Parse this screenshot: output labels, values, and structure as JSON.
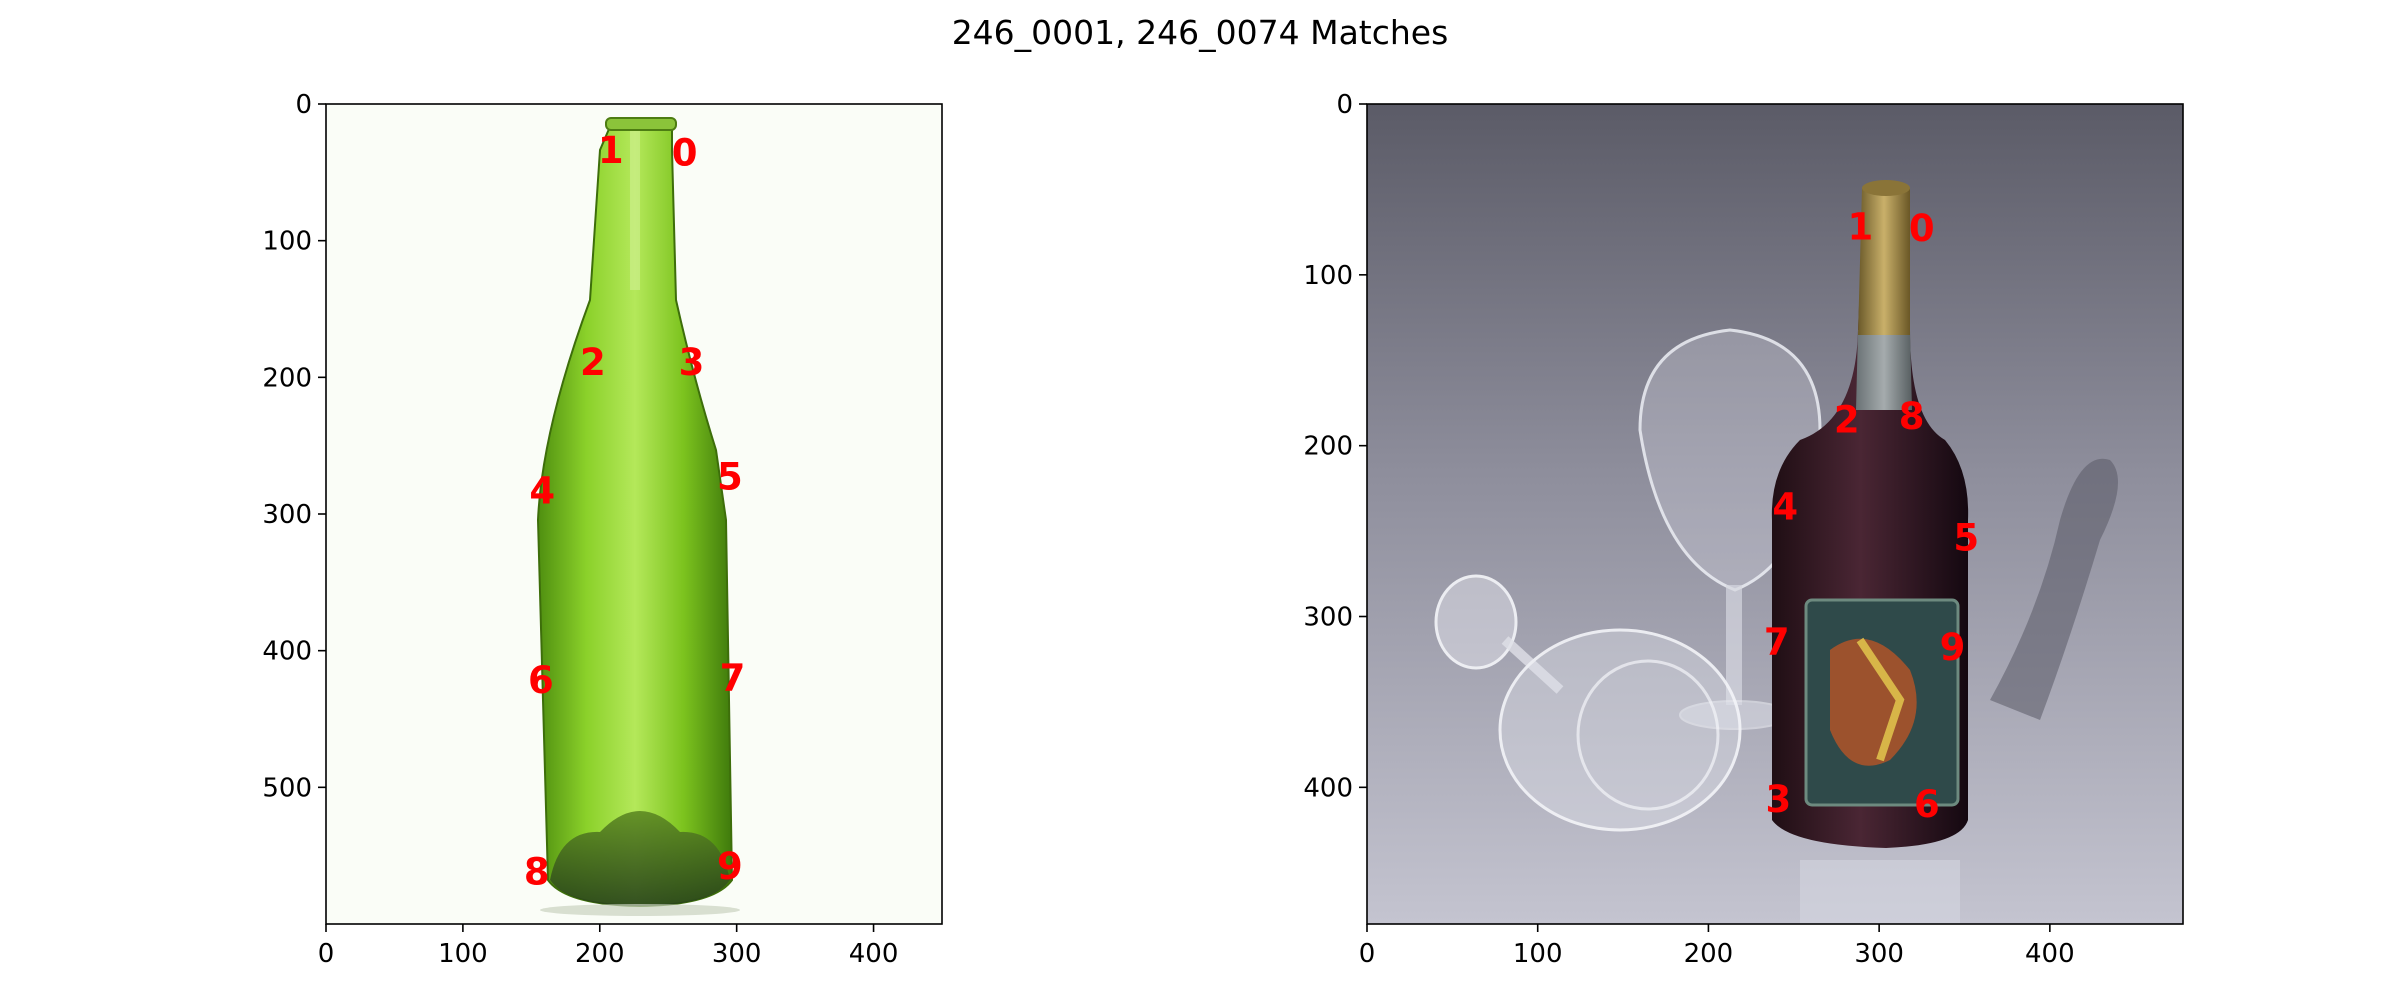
{
  "figure": {
    "title": "246_0001, 246_0074 Matches"
  },
  "chart_data": [
    {
      "type": "scatter",
      "image": "green-bottle-photo",
      "xlim": [
        0,
        450
      ],
      "ylim": [
        600,
        0
      ],
      "xticks": [
        0,
        100,
        200,
        300,
        400
      ],
      "yticks": [
        0,
        100,
        200,
        300,
        400,
        500
      ],
      "points": [
        {
          "label": "0",
          "x": 262,
          "y": 36
        },
        {
          "label": "1",
          "x": 208,
          "y": 34
        },
        {
          "label": "2",
          "x": 195,
          "y": 189
        },
        {
          "label": "3",
          "x": 267,
          "y": 189
        },
        {
          "label": "4",
          "x": 158,
          "y": 283
        },
        {
          "label": "5",
          "x": 295,
          "y": 273
        },
        {
          "label": "6",
          "x": 157,
          "y": 422
        },
        {
          "label": "7",
          "x": 297,
          "y": 420
        },
        {
          "label": "8",
          "x": 154,
          "y": 562
        },
        {
          "label": "9",
          "x": 295,
          "y": 558
        }
      ]
    },
    {
      "type": "scatter",
      "image": "wine-bottle-and-glasses-render",
      "xlim": [
        0,
        478
      ],
      "ylim": [
        480,
        0
      ],
      "xticks": [
        0,
        100,
        200,
        300,
        400
      ],
      "yticks": [
        0,
        100,
        200,
        300,
        400
      ],
      "points": [
        {
          "label": "0",
          "x": 325,
          "y": 73
        },
        {
          "label": "1",
          "x": 289,
          "y": 72
        },
        {
          "label": "2",
          "x": 281,
          "y": 185
        },
        {
          "label": "3",
          "x": 241,
          "y": 407
        },
        {
          "label": "4",
          "x": 245,
          "y": 236
        },
        {
          "label": "5",
          "x": 351,
          "y": 254
        },
        {
          "label": "6",
          "x": 328,
          "y": 410
        },
        {
          "label": "7",
          "x": 240,
          "y": 315
        },
        {
          "label": "8",
          "x": 319,
          "y": 183
        },
        {
          "label": "9",
          "x": 343,
          "y": 318
        }
      ]
    }
  ]
}
